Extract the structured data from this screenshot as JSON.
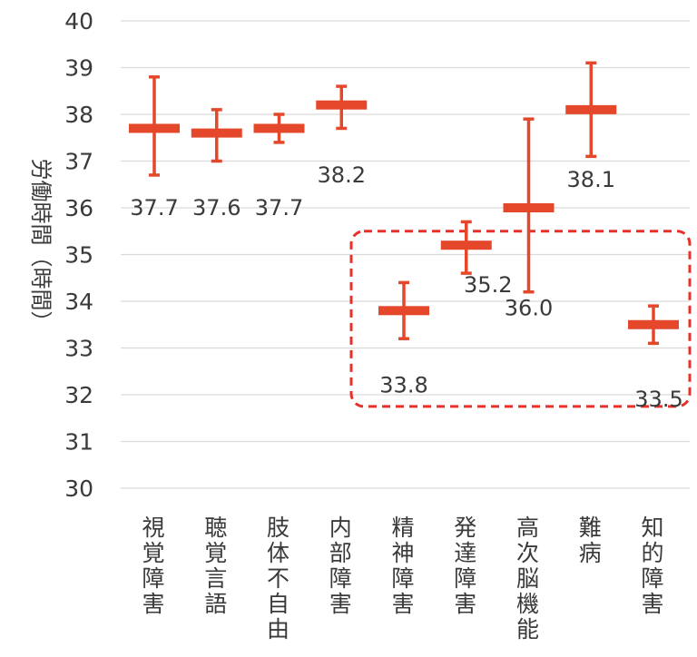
{
  "chart_data": {
    "type": "scatter",
    "ylabel": "労働時間（時間）",
    "ylim": [
      30,
      40
    ],
    "yticks": [
      30,
      31,
      32,
      33,
      34,
      35,
      36,
      37,
      38,
      39,
      40
    ],
    "grid": true,
    "colors": {
      "marker": "#e4472a",
      "highlight": "#e8302a",
      "grid": "#d9d9d9",
      "text": "#3a3a3a"
    },
    "categories": [
      "視覚障害",
      "聴覚言語",
      "肢体不自由",
      "内部障害",
      "精神障害",
      "発達障害",
      "高次脳機能",
      "難病",
      "知的障害"
    ],
    "points": [
      {
        "category": "視覚障害",
        "value": 37.7,
        "label": "37.7",
        "low": 36.7,
        "high": 38.8
      },
      {
        "category": "聴覚言語",
        "value": 37.6,
        "label": "37.6",
        "low": 37.0,
        "high": 38.1
      },
      {
        "category": "肢体不自由",
        "value": 37.7,
        "label": "37.7",
        "low": 37.4,
        "high": 38.0
      },
      {
        "category": "内部障害",
        "value": 38.2,
        "label": "38.2",
        "low": 37.7,
        "high": 38.6
      },
      {
        "category": "精神障害",
        "value": 33.8,
        "label": "33.8",
        "low": 33.2,
        "high": 34.4
      },
      {
        "category": "発達障害",
        "value": 35.2,
        "label": "35.2",
        "low": 34.6,
        "high": 35.7
      },
      {
        "category": "高次脳機能",
        "value": 36.0,
        "label": "36.0",
        "low": 34.2,
        "high": 37.9
      },
      {
        "category": "難病",
        "value": 38.1,
        "label": "38.1",
        "low": 37.1,
        "high": 39.1
      },
      {
        "category": "知的障害",
        "value": 33.5,
        "label": "33.5",
        "low": 33.1,
        "high": 33.9
      }
    ],
    "highlight_group": [
      "精神障害",
      "発達障害",
      "高次脳機能",
      "難病",
      "知的障害"
    ]
  }
}
